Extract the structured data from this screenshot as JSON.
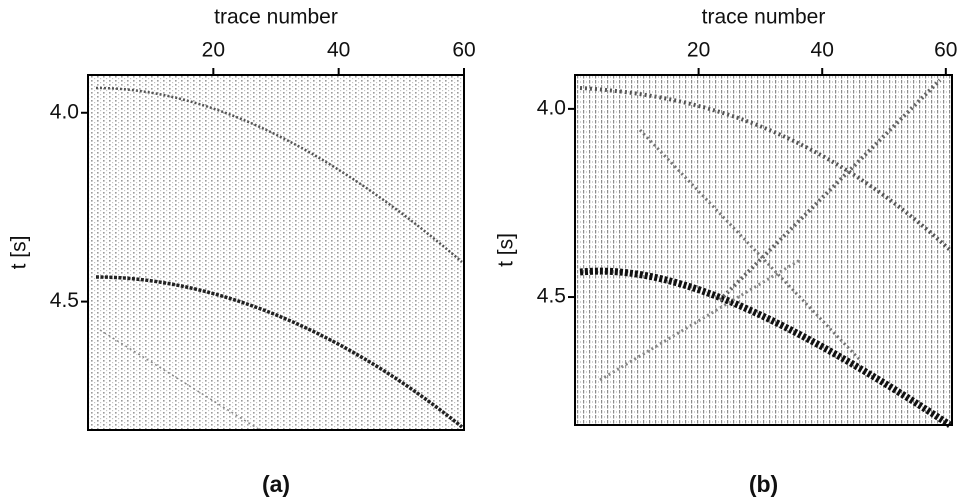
{
  "chart_data": [
    {
      "type": "seismic",
      "x_label": "trace number",
      "y_label": "t [s]",
      "caption": "(a)",
      "xlim": [
        0,
        60
      ],
      "xticks": [
        20,
        40,
        60
      ],
      "ylim": [
        3.9,
        4.84
      ],
      "yticks": [
        {
          "value": 4.0,
          "label": "4.0"
        },
        4.5
      ],
      "y_inverted": true
    },
    {
      "type": "seismic",
      "x_label": "trace number",
      "y_label": "t [s]",
      "caption": "(b)",
      "xlim": [
        0,
        61
      ],
      "xticks": [
        20,
        40,
        60
      ],
      "ylim": [
        3.91,
        4.84
      ],
      "yticks": [
        {
          "value": 4.0,
          "label": "4.0"
        },
        4.5
      ],
      "y_inverted": true
    }
  ]
}
